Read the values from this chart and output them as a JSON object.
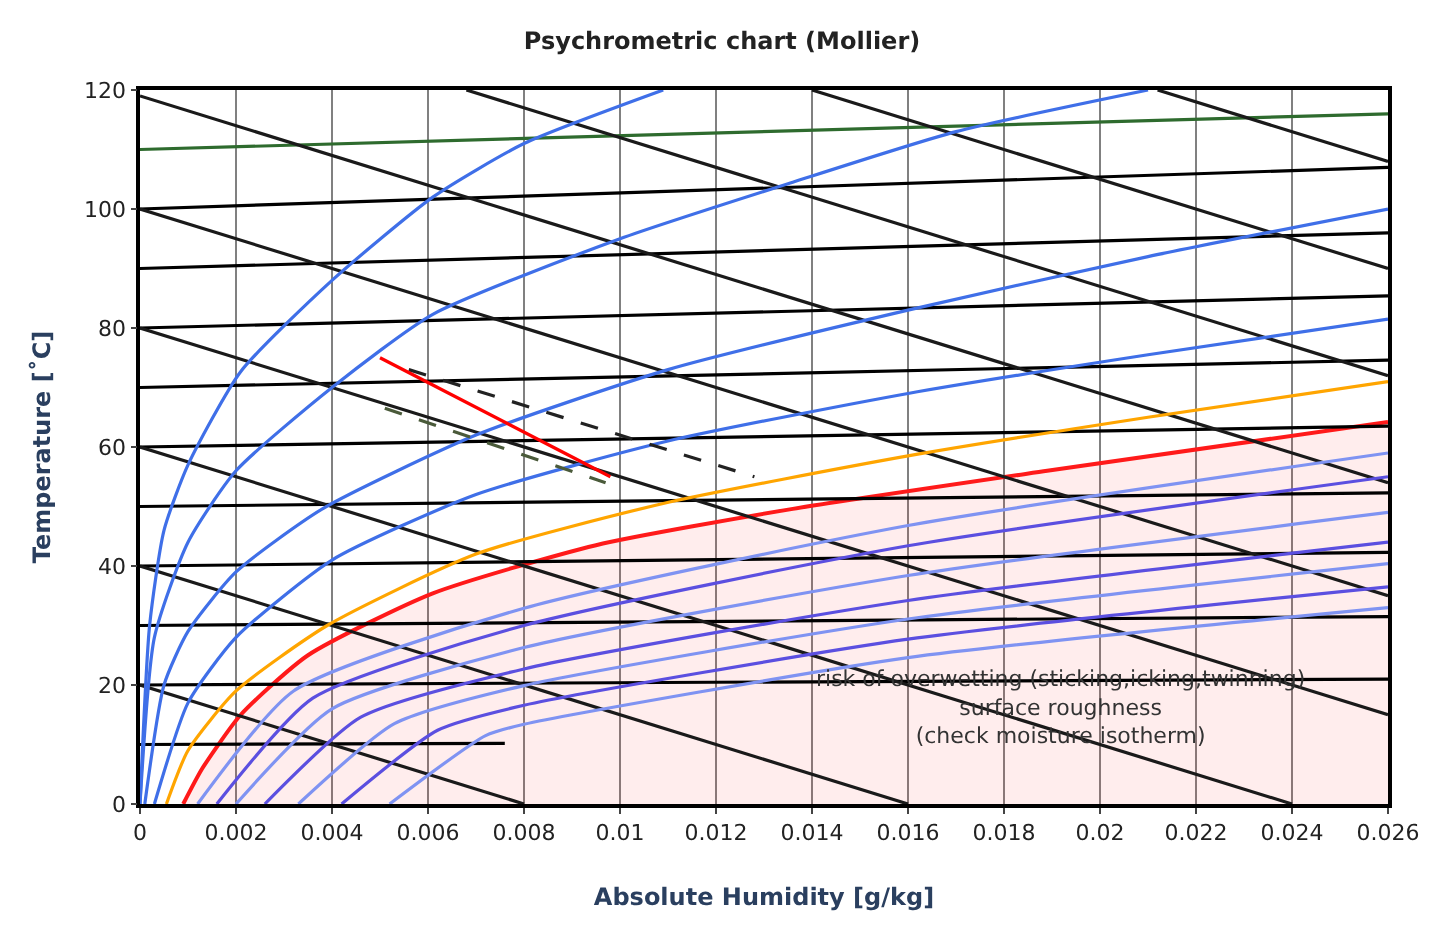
{
  "chart_data": {
    "type": "line",
    "title": "Psychrometric chart (Mollier)",
    "xlabel": "Absolute Humidity [g/kg]",
    "ylabel": "Temperature [˚C]",
    "xlim": [
      0,
      0.026
    ],
    "xticks": [
      0,
      0.002,
      0.004,
      0.006,
      0.008,
      0.01,
      0.012,
      0.014,
      0.016,
      0.018,
      0.02,
      0.022,
      0.024,
      0.026
    ],
    "ylim": [
      0,
      120
    ],
    "yticks": [
      0,
      20,
      40,
      60,
      80,
      100,
      120
    ],
    "grid": "x",
    "marker": "none",
    "line_style": "solid",
    "annotations": [
      "risk of overwetting (sticking,icking,twinning)\nsurface roughness\n(check moisture isotherm)"
    ],
    "series": [
      {
        "color": "#000000",
        "x": [
          0,
          0.0076
        ],
        "values": [
          10,
          10.2
        ]
      },
      {
        "color": "#000000",
        "x": [
          0,
          0.026
        ],
        "values": [
          20,
          21
        ]
      },
      {
        "color": "#000000",
        "x": [
          0,
          0.026
        ],
        "values": [
          30,
          31.5
        ]
      },
      {
        "color": "#000000",
        "x": [
          0,
          0.026
        ],
        "values": [
          40,
          42.3
        ]
      },
      {
        "color": "#000000",
        "x": [
          0,
          0.026
        ],
        "values": [
          50,
          52.3
        ]
      },
      {
        "color": "#000000",
        "x": [
          0,
          0.026
        ],
        "values": [
          60,
          63.5
        ]
      },
      {
        "color": "#000000",
        "x": [
          0,
          0.026
        ],
        "values": [
          70,
          74.6
        ]
      },
      {
        "color": "#000000",
        "x": [
          0,
          0.026
        ],
        "values": [
          80,
          85.4
        ]
      },
      {
        "color": "#000000",
        "x": [
          0,
          0.026
        ],
        "values": [
          90,
          96
        ]
      },
      {
        "color": "#000000",
        "x": [
          0,
          0.026
        ],
        "values": [
          100,
          107
        ]
      },
      {
        "color": "#2e6b2e",
        "x": [
          0,
          0.026
        ],
        "values": [
          110,
          116
        ]
      },
      {
        "color": "#1a1a1a",
        "x": [
          0,
          0.008
        ],
        "values": [
          20,
          0
        ]
      },
      {
        "color": "#1a1a1a",
        "x": [
          0,
          0.016
        ],
        "values": [
          40,
          0
        ]
      },
      {
        "color": "#1a1a1a",
        "x": [
          0,
          0.024
        ],
        "values": [
          60,
          0
        ]
      },
      {
        "color": "#1a1a1a",
        "x": [
          0,
          0.026
        ],
        "values": [
          80,
          15
        ]
      },
      {
        "color": "#1a1a1a",
        "x": [
          0,
          0.026
        ],
        "values": [
          100,
          35
        ]
      },
      {
        "color": "#1a1a1a",
        "x": [
          0,
          0.026
        ],
        "values": [
          119,
          54
        ]
      },
      {
        "color": "#1a1a1a",
        "x": [
          0.0068,
          0.026
        ],
        "values": [
          120,
          72
        ]
      },
      {
        "color": "#1a1a1a",
        "x": [
          0.014,
          0.026
        ],
        "values": [
          120,
          90
        ]
      },
      {
        "color": "#1a1a1a",
        "x": [
          0.0212,
          0.026
        ],
        "values": [
          120,
          108
        ]
      },
      {
        "color": "#3f6fe8",
        "x": [
          0,
          0.0002,
          0.0005,
          0.001,
          0.0021,
          0.004,
          0.0061,
          0.008,
          0.0109
        ],
        "values": [
          0,
          30,
          46,
          57,
          72.7,
          88,
          102,
          111,
          120
        ]
      },
      {
        "color": "#3f6fe8",
        "x": [
          0,
          0.0003,
          0.001,
          0.002,
          0.004,
          0.0061,
          0.01,
          0.0136,
          0.017,
          0.021
        ],
        "values": [
          0,
          28,
          44,
          56,
          70,
          82.3,
          95,
          104.5,
          113,
          120
        ]
      },
      {
        "color": "#3f6fe8",
        "x": [
          0.0001,
          0.0005,
          0.001,
          0.002,
          0.0038,
          0.007,
          0.011,
          0.016,
          0.021,
          0.026
        ],
        "values": [
          0,
          20,
          29,
          39,
          49.6,
          62,
          73,
          83,
          92,
          100
        ]
      },
      {
        "color": "#3f6fe8",
        "x": [
          0.0003,
          0.001,
          0.002,
          0.004,
          0.007,
          0.011,
          0.016,
          0.021,
          0.026
        ],
        "values": [
          0,
          17,
          28,
          41,
          52,
          61,
          69,
          75.5,
          81.5
        ]
      },
      {
        "color": "#ffa500",
        "x": [
          0.00055,
          0.001,
          0.002,
          0.0039,
          0.007,
          0.0109,
          0.016,
          0.021,
          0.026
        ],
        "values": [
          0,
          9,
          19,
          30,
          42,
          50.5,
          58.5,
          65,
          71
        ]
      },
      {
        "type": "area",
        "color": "#ff1a1a",
        "x": [
          0.0009,
          0.0013,
          0.0021,
          0.0035,
          0.0061,
          0.0095,
          0.0136,
          0.0189,
          0.026
        ],
        "values": [
          0,
          6,
          15,
          25,
          35.4,
          43.5,
          49.6,
          56,
          64.2
        ]
      },
      {
        "color": "#7f93f2",
        "x": [
          0.0012,
          0.0032,
          0.008,
          0.016,
          0.026
        ],
        "values": [
          0,
          19,
          32.9,
          46.8,
          59
        ]
      },
      {
        "color": "#5b4fe0",
        "x": [
          0.0016,
          0.0036,
          0.008,
          0.016,
          0.026
        ],
        "values": [
          0,
          17.8,
          30,
          43.4,
          55
        ]
      },
      {
        "color": "#7f93f2",
        "x": [
          0.002,
          0.004,
          0.008,
          0.016,
          0.026
        ],
        "values": [
          0,
          16,
          26.3,
          38.4,
          49
        ]
      },
      {
        "color": "#5b4fe0",
        "x": [
          0.0026,
          0.0046,
          0.008,
          0.016,
          0.026
        ],
        "values": [
          0,
          14.6,
          22.7,
          34.2,
          44
        ]
      },
      {
        "color": "#7f93f2",
        "x": [
          0.0033,
          0.0053,
          0.008,
          0.016,
          0.026
        ],
        "values": [
          0,
          13.5,
          19.9,
          31.1,
          40.4
        ]
      },
      {
        "color": "#5b4fe0",
        "x": [
          0.0042,
          0.0062,
          0.008,
          0.016,
          0.026
        ],
        "values": [
          0,
          12.4,
          16.6,
          27.7,
          36.5
        ]
      },
      {
        "color": "#7f93f2",
        "x": [
          0.0052,
          0.0072,
          0.008,
          0.016,
          0.026
        ],
        "values": [
          0,
          11.5,
          13.4,
          24.6,
          33
        ]
      },
      {
        "color": "#222222",
        "line_style": "dashed",
        "x": [
          0.0056,
          0.0128
        ],
        "values": [
          73,
          55
        ]
      },
      {
        "color": "#4a5a3a",
        "line_style": "dashed",
        "x": [
          0.0051,
          0.0097
        ],
        "values": [
          66.5,
          54
        ]
      },
      {
        "color": "#ff0000",
        "x": [
          0.005,
          0.0098
        ],
        "values": [
          75,
          55
        ]
      }
    ]
  }
}
